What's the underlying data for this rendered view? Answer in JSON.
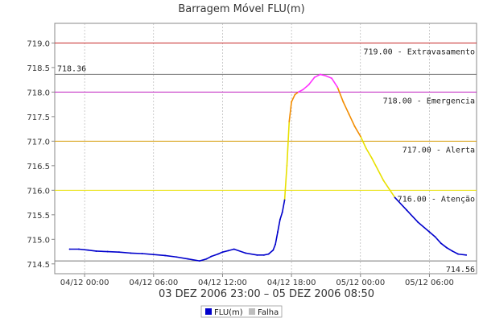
{
  "chart_data": {
    "type": "line",
    "title": "Barragem Móvel FLU(m)",
    "subtitle": "03 DEZ 2006 23:00 – 05 DEZ 2006 08:50",
    "ylim": [
      714.3,
      719.4
    ],
    "y_ticks": [
      714.5,
      715.0,
      715.5,
      716.0,
      716.5,
      717.0,
      717.5,
      718.0,
      718.5,
      719.0
    ],
    "y_tick_labels": [
      "714.5",
      "715.0",
      "715.5",
      "716.0",
      "716.5",
      "717.0",
      "717.5",
      "718.0",
      "718.5",
      "719.0"
    ],
    "x_ticks": [
      0,
      6,
      12,
      18,
      24,
      30
    ],
    "x_tick_labels": [
      "04/12 00:00",
      "04/12 06:00",
      "04/12 12:00",
      "04/12 18:00",
      "05/12 00:00",
      "05/12 06:00"
    ],
    "xlim": [
      -2.6,
      34.1
    ],
    "reference_lines": [
      {
        "value": 719.0,
        "label": "719.00 - Extravasamento",
        "color": "#c62828"
      },
      {
        "value": 718.0,
        "label": "718.00 - Emergencia",
        "color": "#c020c0"
      },
      {
        "value": 717.0,
        "label": "717.00 - Alerta",
        "color": "#d49a00"
      },
      {
        "value": 716.0,
        "label": "716.00 - Atenção",
        "color": "#e8e000"
      }
    ],
    "max_marker": {
      "value": 718.36,
      "label": "718.36"
    },
    "min_marker": {
      "value": 714.56,
      "label": "714.56"
    },
    "series": [
      {
        "name": "FLU(m)",
        "x": [
          -1.3,
          -0.5,
          0.3,
          1.0,
          2.0,
          3.0,
          4.0,
          5.0,
          6.0,
          7.0,
          8.0,
          9.0,
          10.0,
          10.6,
          11.0,
          11.6,
          12.0,
          12.5,
          13.0,
          14.0,
          15.0,
          15.6,
          16.0,
          16.4,
          16.6,
          16.8,
          17.0,
          17.2,
          17.4,
          17.6,
          17.8,
          18.0,
          18.3,
          18.6,
          19.0,
          19.5,
          20.0,
          20.5,
          21.0,
          21.5,
          22.0,
          22.5,
          23.0,
          23.5,
          24.0,
          24.5,
          25.0,
          26.0,
          27.0,
          28.0,
          29.0,
          30.0,
          30.5,
          31.0,
          31.5,
          32.0,
          32.5,
          33.2
        ],
        "y": [
          714.8,
          714.8,
          714.78,
          714.76,
          714.75,
          714.74,
          714.72,
          714.71,
          714.69,
          714.67,
          714.64,
          714.6,
          714.56,
          714.6,
          714.65,
          714.7,
          714.74,
          714.77,
          714.8,
          714.72,
          714.68,
          714.68,
          714.7,
          714.78,
          714.9,
          715.15,
          715.4,
          715.55,
          715.8,
          716.5,
          717.4,
          717.8,
          717.95,
          718.0,
          718.05,
          718.15,
          718.3,
          718.36,
          718.33,
          718.28,
          718.1,
          717.8,
          717.55,
          717.3,
          717.1,
          716.85,
          716.65,
          716.2,
          715.85,
          715.6,
          715.35,
          715.15,
          715.05,
          714.92,
          714.83,
          714.76,
          714.7,
          714.68
        ]
      }
    ],
    "legend": {
      "position": "bottom-center",
      "entries": [
        {
          "label": "FLU(m)",
          "color": "#0000cc"
        },
        {
          "label": "Falha",
          "color": "#bdbdbd"
        }
      ]
    }
  },
  "colors": {
    "normal": "#0000cc",
    "atencao": "#e8e000",
    "alerta": "#f28c00",
    "emergencia": "#ff33ff",
    "gridline": "#aaaaaa",
    "axis": "#888888"
  }
}
